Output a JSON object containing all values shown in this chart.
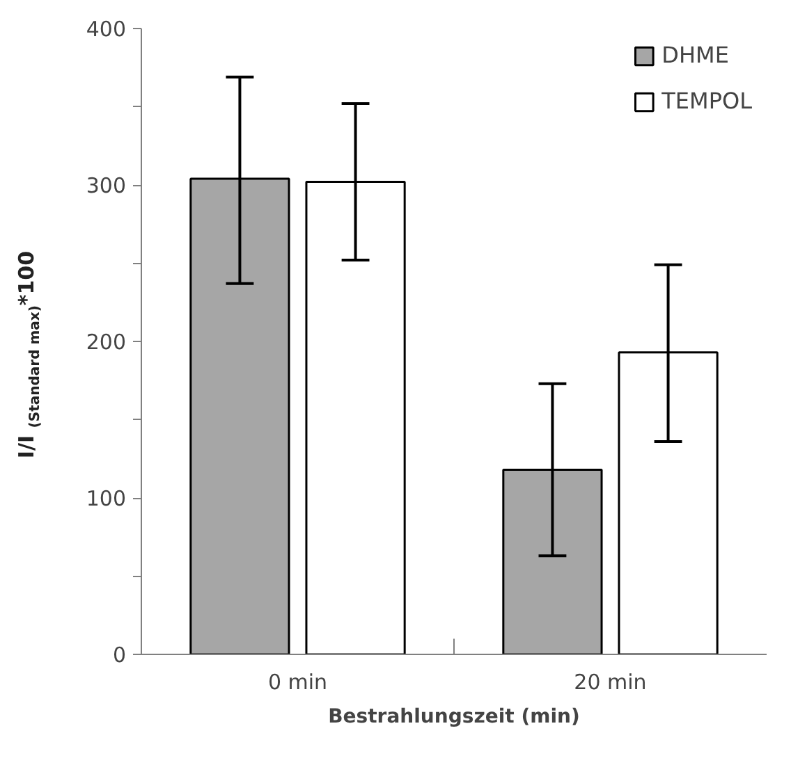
{
  "chart_data": {
    "type": "bar",
    "xlabel": "Bestrahlungszeit (min)",
    "ylabel": "I/I $_{(Standard max)}$*100",
    "categories": [
      "0 min",
      "20 min"
    ],
    "series": [
      {
        "name": "DHME",
        "color": "#a6a6a6",
        "values": [
          304,
          118
        ],
        "errors": [
          [
            237,
            369
          ],
          [
            63,
            173
          ]
        ]
      },
      {
        "name": "TEMPOL",
        "color": "#ffffff",
        "values": [
          302,
          193
        ],
        "errors": [
          [
            252,
            352
          ],
          [
            136,
            249
          ]
        ]
      }
    ],
    "ylim": [
      0,
      400
    ],
    "yticks": [
      0,
      {
        "value": 50,
        "label": null
      },
      100,
      {
        "value": 150,
        "label": null
      },
      200,
      {
        "value": 250,
        "label": null
      },
      300,
      {
        "value": 350,
        "label": null
      },
      400
    ],
    "grid": false,
    "legend": "top right"
  }
}
